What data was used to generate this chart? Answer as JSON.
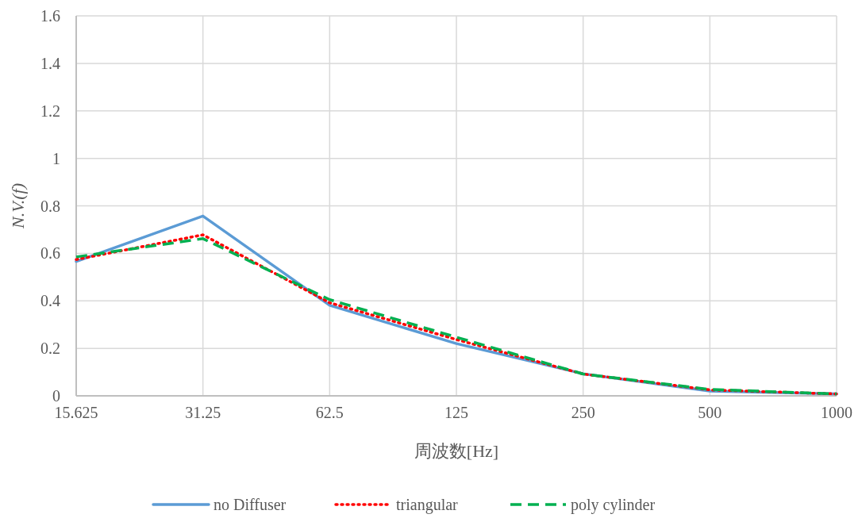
{
  "chart_data": {
    "type": "line",
    "xlabel": "周波数[Hz]",
    "ylabel": "N.V.(f)",
    "x": [
      15.625,
      31.25,
      62.5,
      125,
      250,
      500,
      1000
    ],
    "series": [
      {
        "name": "no Diffuser",
        "color": "#5b9bd5",
        "line_style": "solid",
        "values": [
          0.566,
          0.757,
          0.381,
          0.22,
          0.093,
          0.02,
          0.008
        ]
      },
      {
        "name": "triangular",
        "color": "#ff0000",
        "line_style": "dotted",
        "values": [
          0.574,
          0.678,
          0.392,
          0.237,
          0.092,
          0.025,
          0.008
        ]
      },
      {
        "name": "poly cylinder",
        "color": "#00b050",
        "line_style": "dashed",
        "values": [
          0.585,
          0.662,
          0.405,
          0.247,
          0.092,
          0.027,
          0.008
        ]
      }
    ],
    "log": "x",
    "xlim": [
      15.625,
      1000
    ],
    "xticks": [
      15.625,
      31.25,
      62.5,
      125,
      250,
      500,
      1000
    ],
    "ylim": [
      0,
      1.6
    ],
    "yticks": [
      0,
      0.2,
      0.4,
      0.6,
      0.8,
      1,
      1.2,
      1.4,
      1.6
    ],
    "grid": true,
    "legend": "bottom",
    "marker": "none"
  }
}
